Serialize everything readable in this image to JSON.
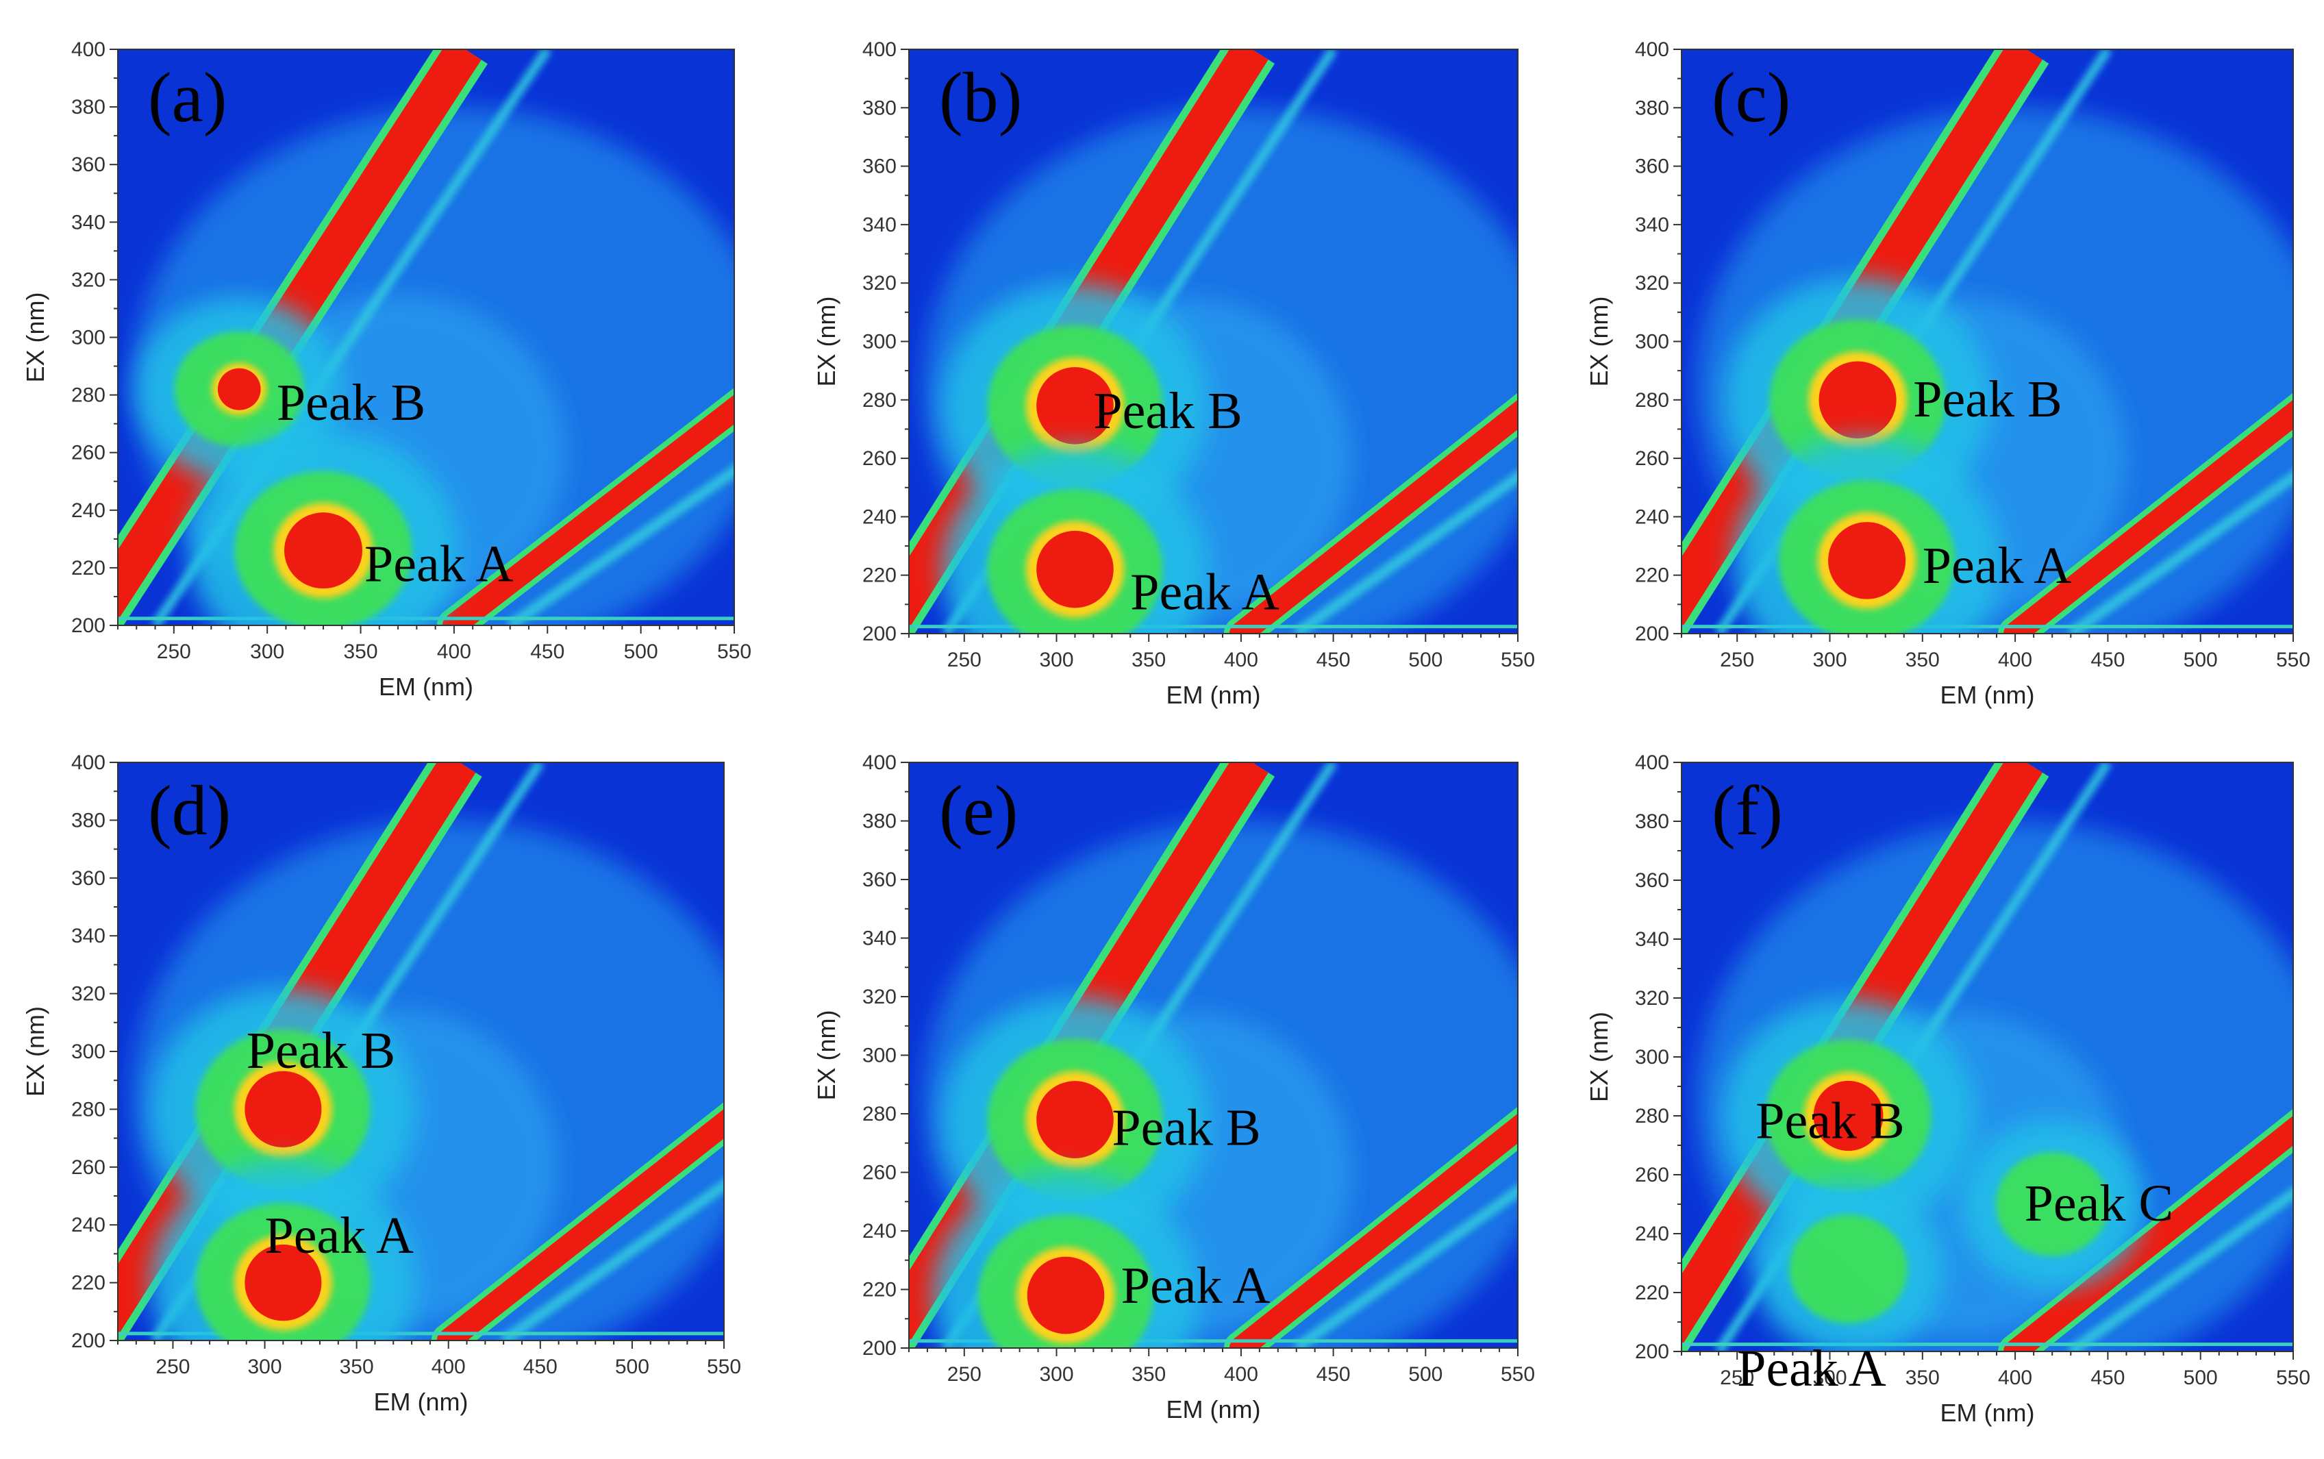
{
  "chart_data": [
    {
      "type": "heatmap",
      "panel": "(a)",
      "xlabel": "EM (nm)",
      "ylabel": "EX (nm)",
      "xlim": [
        220,
        550
      ],
      "ylim": [
        200,
        400
      ],
      "xticks": [
        250,
        300,
        350,
        400,
        450,
        500,
        550
      ],
      "yticks": [
        200,
        220,
        240,
        260,
        280,
        300,
        320,
        340,
        360,
        380,
        400
      ],
      "peaks": [
        {
          "label": "Peak B",
          "em": 285,
          "ex": 282,
          "intensity": 0.55
        },
        {
          "label": "Peak A",
          "em": 330,
          "ex": 226,
          "intensity": 1.0
        }
      ]
    },
    {
      "type": "heatmap",
      "panel": "(b)",
      "xlabel": "EM (nm)",
      "ylabel": "EX (nm)",
      "xlim": [
        220,
        550
      ],
      "ylim": [
        200,
        400
      ],
      "xticks": [
        250,
        300,
        350,
        400,
        450,
        500,
        550
      ],
      "yticks": [
        200,
        220,
        240,
        260,
        280,
        300,
        320,
        340,
        360,
        380,
        400
      ],
      "peaks": [
        {
          "label": "Peak B",
          "em": 310,
          "ex": 278,
          "intensity": 1.0
        },
        {
          "label": "Peak A",
          "em": 310,
          "ex": 222,
          "intensity": 1.0
        }
      ]
    },
    {
      "type": "heatmap",
      "panel": "(c)",
      "xlabel": "EM (nm)",
      "ylabel": "EX (nm)",
      "xlim": [
        220,
        550
      ],
      "ylim": [
        200,
        400
      ],
      "xticks": [
        250,
        300,
        350,
        400,
        450,
        500,
        550
      ],
      "yticks": [
        200,
        220,
        240,
        260,
        280,
        300,
        320,
        340,
        360,
        380,
        400
      ],
      "peaks": [
        {
          "label": "Peak B",
          "em": 315,
          "ex": 280,
          "intensity": 1.0
        },
        {
          "label": "Peak A",
          "em": 320,
          "ex": 225,
          "intensity": 1.0
        }
      ]
    },
    {
      "type": "heatmap",
      "panel": "(d)",
      "xlabel": "EM (nm)",
      "ylabel": "EX (nm)",
      "xlim": [
        220,
        550
      ],
      "ylim": [
        200,
        400
      ],
      "xticks": [
        250,
        300,
        350,
        400,
        450,
        500,
        550
      ],
      "yticks": [
        200,
        220,
        240,
        260,
        280,
        300,
        320,
        340,
        360,
        380,
        400
      ],
      "peaks": [
        {
          "label": "Peak B",
          "em": 310,
          "ex": 280,
          "intensity": 1.0
        },
        {
          "label": "Peak A",
          "em": 310,
          "ex": 220,
          "intensity": 1.0
        }
      ]
    },
    {
      "type": "heatmap",
      "panel": "(e)",
      "xlabel": "EM (nm)",
      "ylabel": "EX (nm)",
      "xlim": [
        220,
        550
      ],
      "ylim": [
        200,
        400
      ],
      "xticks": [
        250,
        300,
        350,
        400,
        450,
        500,
        550
      ],
      "yticks": [
        200,
        220,
        240,
        260,
        280,
        300,
        320,
        340,
        360,
        380,
        400
      ],
      "peaks": [
        {
          "label": "Peak B",
          "em": 310,
          "ex": 278,
          "intensity": 1.0
        },
        {
          "label": "Peak A",
          "em": 305,
          "ex": 218,
          "intensity": 1.0
        }
      ]
    },
    {
      "type": "heatmap",
      "panel": "(f)",
      "xlabel": "EM (nm)",
      "ylabel": "EX (nm)",
      "xlim": [
        220,
        550
      ],
      "ylim": [
        200,
        400
      ],
      "xticks": [
        250,
        300,
        350,
        400,
        450,
        500,
        550
      ],
      "yticks": [
        200,
        220,
        240,
        260,
        280,
        300,
        320,
        340,
        360,
        380,
        400
      ],
      "peaks": [
        {
          "label": "Peak B",
          "em": 310,
          "ex": 280,
          "intensity": 0.9
        },
        {
          "label": "Peak C",
          "em": 420,
          "ex": 250,
          "intensity": 0.4
        },
        {
          "label": "Peak A",
          "em": 310,
          "ex": 228,
          "intensity": 0.45
        }
      ]
    }
  ]
}
